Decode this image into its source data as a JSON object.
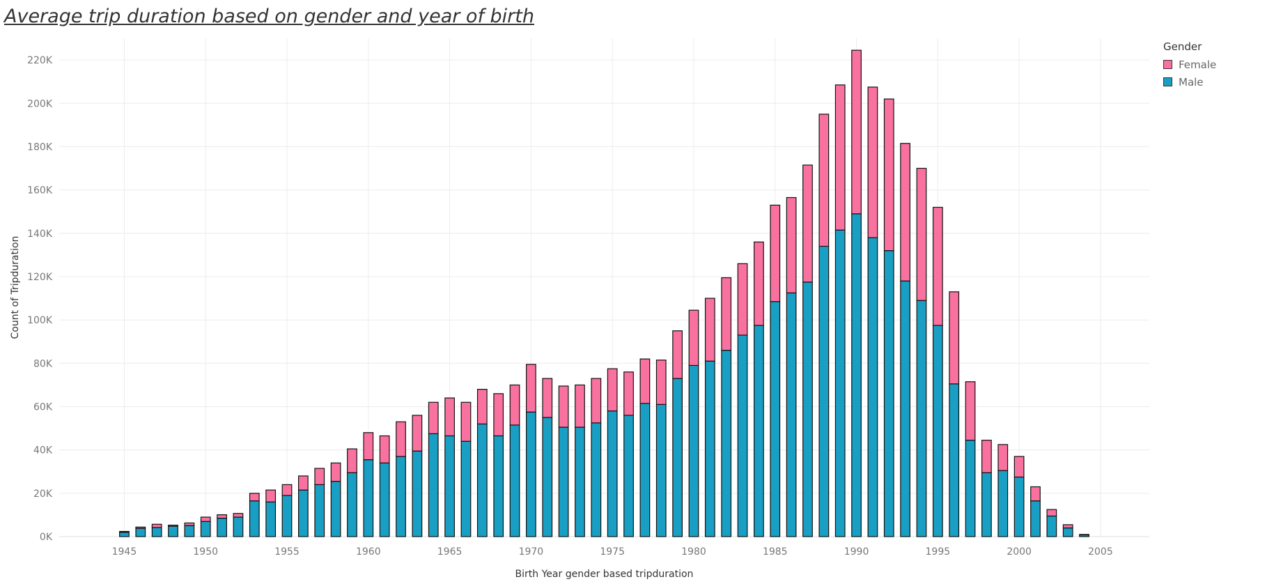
{
  "chart_data": {
    "type": "bar",
    "stacked": true,
    "title": "Average trip duration based on gender and year of birth",
    "xlabel": "Birth Year  gender based tripduration",
    "ylabel": "Count of Tripduration",
    "ylim": [
      0,
      230000
    ],
    "xlim": [
      1941,
      2008
    ],
    "grid": true,
    "legend": {
      "title": "Gender",
      "position": "top-right"
    },
    "x": [
      1945,
      1946,
      1947,
      1948,
      1949,
      1950,
      1951,
      1952,
      1953,
      1954,
      1955,
      1956,
      1957,
      1958,
      1959,
      1960,
      1961,
      1962,
      1963,
      1964,
      1965,
      1966,
      1967,
      1968,
      1969,
      1970,
      1971,
      1972,
      1973,
      1974,
      1975,
      1976,
      1977,
      1978,
      1979,
      1980,
      1981,
      1982,
      1983,
      1984,
      1985,
      1986,
      1987,
      1988,
      1989,
      1990,
      1991,
      1992,
      1993,
      1994,
      1995,
      1996,
      1997,
      1998,
      1999,
      2000,
      2001,
      2002,
      2003,
      2004
    ],
    "series": [
      {
        "name": "Male",
        "color": "#1a9fc4",
        "values": [
          2000,
          3800,
          4200,
          4800,
          5100,
          7000,
          8500,
          9000,
          16500,
          16000,
          19000,
          21500,
          24000,
          25500,
          29500,
          35500,
          34000,
          37000,
          39500,
          47500,
          46500,
          44000,
          52000,
          46500,
          51500,
          57500,
          55000,
          50500,
          50500,
          52500,
          58000,
          56000,
          61500,
          61000,
          73000,
          79000,
          81000,
          86000,
          93000,
          97500,
          108500,
          112500,
          117500,
          134000,
          141500,
          149000,
          138000,
          132000,
          118000,
          109000,
          97500,
          70500,
          44500,
          29500,
          30500,
          27500,
          16500,
          9500,
          4000,
          800
        ]
      },
      {
        "name": "Female",
        "color": "#f9729f",
        "values": [
          400,
          600,
          1500,
          500,
          1200,
          2000,
          1600,
          1700,
          3500,
          5500,
          5000,
          6500,
          7500,
          8500,
          11000,
          12500,
          12500,
          16000,
          16500,
          14500,
          17500,
          18000,
          16000,
          19500,
          18500,
          22000,
          18000,
          19000,
          19500,
          20500,
          19500,
          20000,
          20500,
          20500,
          22000,
          25500,
          29000,
          33500,
          33000,
          38500,
          44500,
          44000,
          54000,
          61000,
          67000,
          75500,
          69500,
          70000,
          63500,
          61000,
          54500,
          42500,
          27000,
          15000,
          12000,
          9500,
          6500,
          3000,
          1500,
          200
        ]
      }
    ],
    "yticks": [
      "0K",
      "20K",
      "40K",
      "60K",
      "80K",
      "100K",
      "120K",
      "140K",
      "160K",
      "180K",
      "200K",
      "220K"
    ],
    "xticks": [
      "1945",
      "1950",
      "1955",
      "1960",
      "1965",
      "1970",
      "1975",
      "1980",
      "1985",
      "1990",
      "1995",
      "2000",
      "2005"
    ]
  }
}
